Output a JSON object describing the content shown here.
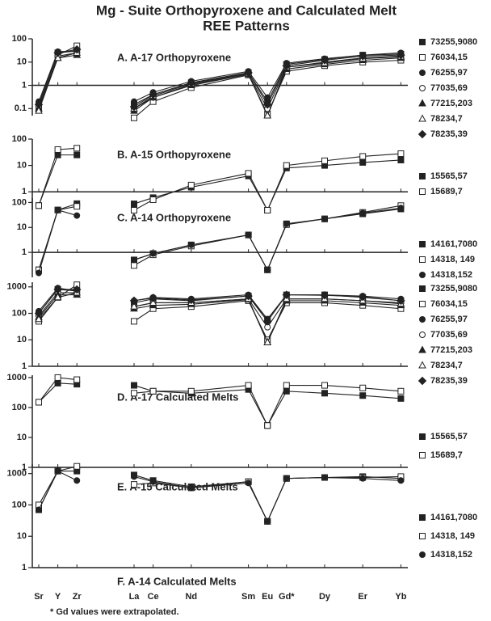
{
  "title_lines": [
    "Mg - Suite Orthopyroxene and Calculated Melt",
    "REE Patterns"
  ],
  "footnote": "* Gd values were extrapolated.",
  "chart_data": [
    {
      "type": "line",
      "label": "A. A-17 Orthopyroxene",
      "log_y": true,
      "ylim": [
        0.05,
        100
      ],
      "yticks": [
        0.1,
        1,
        10,
        100
      ],
      "x_axis_at": 1,
      "series": [
        {
          "name": "73255,9080",
          "color": "#222",
          "marker": "square-filled",
          "values": [
            0.15,
            25,
            30,
            0.15,
            0.4,
            1.3,
            3.5,
            0.2,
            8,
            13,
            20,
            22
          ]
        },
        {
          "name": "76034,15",
          "color": "#222",
          "marker": "square-open",
          "values": [
            0.1,
            20,
            50,
            0.04,
            0.2,
            0.8,
            2.8,
            0.06,
            4,
            7,
            10,
            12
          ]
        },
        {
          "name": "76255,97",
          "color": "#222",
          "marker": "circle-filled",
          "values": [
            0.2,
            28,
            30,
            0.2,
            0.5,
            1.5,
            4,
            0.3,
            9,
            14,
            20,
            25
          ]
        },
        {
          "name": "77035,69",
          "color": "#222",
          "marker": "circle-open",
          "values": [
            0.12,
            18,
            25,
            0.1,
            0.3,
            1.1,
            3,
            0.1,
            6,
            10,
            15,
            18
          ]
        },
        {
          "name": "77215,203",
          "color": "#222",
          "marker": "triangle-filled",
          "values": [
            0.1,
            15,
            20,
            0.08,
            0.3,
            1,
            3,
            0.05,
            5,
            8,
            12,
            15
          ]
        },
        {
          "name": "78234,7",
          "color": "#222",
          "marker": "triangle-open",
          "values": [
            0.08,
            15,
            25,
            0.1,
            0.35,
            1.2,
            3.2,
            0.05,
            6,
            9,
            14,
            17
          ]
        },
        {
          "name": "78235,39",
          "color": "#222",
          "marker": "diamond-filled",
          "values": [
            0.15,
            25,
            35,
            0.12,
            0.4,
            1.3,
            3.5,
            0.15,
            7,
            12,
            18,
            20
          ]
        }
      ]
    },
    {
      "type": "line",
      "label": "B. A-15 Orthopyroxene",
      "log_y": true,
      "ylim": [
        0.2,
        100
      ],
      "yticks": [
        1,
        10,
        100
      ],
      "x_axis_at": 1,
      "series": [
        {
          "name": "15565,57",
          "color": "#222",
          "marker": "square-filled",
          "values": [
            0.3,
            25,
            25,
            0.35,
            0.6,
            1.5,
            4,
            0.2,
            8,
            10,
            13,
            16
          ]
        },
        {
          "name": "15689,7",
          "color": "#222",
          "marker": "square-open",
          "values": [
            0.3,
            40,
            45,
            0.2,
            0.5,
            1.8,
            5,
            0.2,
            10,
            15,
            22,
            28
          ]
        }
      ]
    },
    {
      "type": "line",
      "label": "C. A-14 Orthopyroxene",
      "log_y": true,
      "ylim": [
        0.1,
        150
      ],
      "yticks": [
        1,
        10,
        100
      ],
      "x_axis_at": 1,
      "series": [
        {
          "name": "14161,7080",
          "color": "#222",
          "marker": "square-filled",
          "values": [
            0.2,
            50,
            90,
            0.5,
            0.9,
            2,
            5,
            0.2,
            14,
            22,
            35,
            55
          ]
        },
        {
          "name": "14318, 149",
          "color": "#222",
          "marker": "square-open",
          "values": [
            0.2,
            50,
            70,
            0.3,
            0.8,
            1.8,
            5,
            0.2,
            13,
            22,
            40,
            75
          ]
        },
        {
          "name": "14318,152",
          "color": "#222",
          "marker": "circle-filled",
          "values": [
            0.15,
            50,
            30,
            0.5,
            0.9,
            2,
            5,
            0.2,
            14,
            22,
            38,
            60
          ]
        }
      ]
    },
    {
      "type": "line",
      "label": "D. A-17 Calculated Melts",
      "log_y": true,
      "ylim": [
        1,
        1500
      ],
      "yticks": [
        1,
        10,
        100,
        1000
      ],
      "x_axis_at": 1,
      "series": [
        {
          "name": "73255,9080",
          "color": "#222",
          "marker": "square-filled",
          "values": [
            100,
            800,
            700,
            250,
            350,
            300,
            450,
            60,
            500,
            500,
            400,
            300
          ]
        },
        {
          "name": "76034,15",
          "color": "#222",
          "marker": "square-open",
          "values": [
            50,
            400,
            1200,
            50,
            150,
            180,
            300,
            10,
            250,
            250,
            200,
            150
          ]
        },
        {
          "name": "76255,97",
          "color": "#222",
          "marker": "circle-filled",
          "values": [
            120,
            900,
            700,
            300,
            400,
            350,
            500,
            60,
            500,
            500,
            450,
            350
          ]
        },
        {
          "name": "77035,69",
          "color": "#222",
          "marker": "circle-open",
          "values": [
            80,
            600,
            600,
            180,
            250,
            250,
            350,
            30,
            350,
            350,
            300,
            250
          ]
        },
        {
          "name": "77215,203",
          "color": "#222",
          "marker": "triangle-filled",
          "values": [
            70,
            500,
            500,
            150,
            200,
            220,
            330,
            8,
            300,
            300,
            250,
            200
          ]
        },
        {
          "name": "78234,7",
          "color": "#222",
          "marker": "triangle-open",
          "values": [
            60,
            400,
            600,
            180,
            250,
            250,
            350,
            8,
            350,
            350,
            300,
            230
          ]
        },
        {
          "name": "78235,39",
          "color": "#222",
          "marker": "diamond-filled",
          "values": [
            100,
            800,
            800,
            300,
            380,
            320,
            450,
            50,
            500,
            480,
            420,
            300
          ]
        }
      ]
    },
    {
      "type": "line",
      "label": "E. A-15 Calculated Melts",
      "log_y": true,
      "ylim": [
        1,
        1200
      ],
      "yticks": [
        1,
        10,
        100,
        1000
      ],
      "x_axis_at": 1,
      "series": [
        {
          "name": "15565,57",
          "color": "#222",
          "marker": "square-filled",
          "values": [
            150,
            650,
            600,
            550,
            350,
            300,
            400,
            25,
            350,
            300,
            250,
            200
          ]
        },
        {
          "name": "15689,7",
          "color": "#222",
          "marker": "square-open",
          "values": [
            150,
            1000,
            850,
            300,
            350,
            350,
            550,
            25,
            550,
            550,
            450,
            350
          ]
        }
      ]
    },
    {
      "type": "line",
      "label": "F. A-14 Calculated Melts",
      "log_y": true,
      "ylim": [
        1,
        2000
      ],
      "yticks": [
        1,
        10,
        100,
        1000
      ],
      "x_axis_at": 1,
      "categories": [
        "Sr",
        "Y",
        "Zr",
        "La",
        "Ce",
        "Nd",
        "Sm",
        "Eu",
        "Gd*",
        "Dy",
        "Er",
        "Yb"
      ],
      "series": [
        {
          "name": "14161,7080",
          "color": "#222",
          "marker": "square-filled",
          "values": [
            70,
            1200,
            1200,
            900,
            600,
            380,
            550,
            30,
            700,
            750,
            800,
            700
          ]
        },
        {
          "name": "14318, 149",
          "color": "#222",
          "marker": "square-open",
          "values": [
            100,
            1200,
            1700,
            450,
            500,
            350,
            550,
            30,
            700,
            750,
            750,
            800
          ]
        },
        {
          "name": "14318,152",
          "color": "#222",
          "marker": "circle-filled",
          "values": [
            70,
            1200,
            600,
            800,
            550,
            350,
            500,
            30,
            700,
            750,
            700,
            600
          ]
        }
      ]
    }
  ]
}
